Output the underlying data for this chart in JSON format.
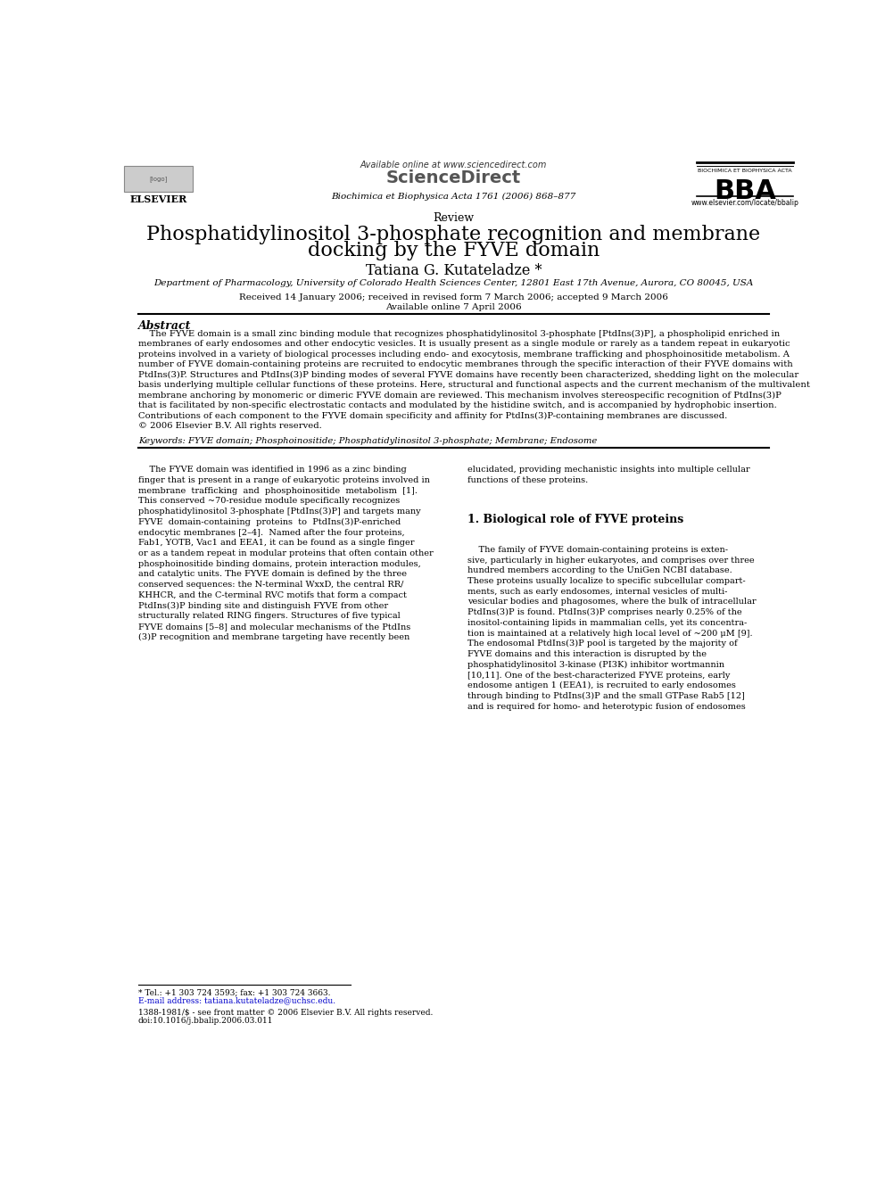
{
  "bg_color": "#ffffff",
  "page_width": 9.92,
  "page_height": 13.23,
  "header_available_online": "Available online at www.sciencedirect.com",
  "header_sciencedirect": "ScienceDirect",
  "header_journal": "Biochimica et Biophysica Acta 1761 (2006) 868–877",
  "header_bba_text": "BIOCHIMICA ET BIOPHYSICA ACTA",
  "header_bba_logo": "BBA",
  "header_elsevier": "ELSEVIER",
  "header_url": "www.elsevier.com/locate/bbalip",
  "article_type": "Review",
  "title_line1": "Phosphatidylinositol 3-phosphate recognition and membrane",
  "title_line2": "docking by the FYVE domain",
  "author": "Tatiana G. Kutateladze *",
  "affiliation": "Department of Pharmacology, University of Colorado Health Sciences Center, 12801 East 17th Avenue, Aurora, CO 80045, USA",
  "received": "Received 14 January 2006; received in revised form 7 March 2006; accepted 9 March 2006",
  "available_online": "Available online 7 April 2006",
  "abstract_title": "Abstract",
  "abstract_text": "    The FYVE domain is a small zinc binding module that recognizes phosphatidylinositol 3-phosphate [PtdIns(3)P], a phospholipid enriched in\nmembranes of early endosomes and other endocytic vesicles. It is usually present as a single module or rarely as a tandem repeat in eukaryotic\nproteins involved in a variety of biological processes including endo- and exocytosis, membrane trafficking and phosphoinositide metabolism. A\nnumber of FYVE domain-containing proteins are recruited to endocytic membranes through the specific interaction of their FYVE domains with\nPtdIns(3)P. Structures and PtdIns(3)P binding modes of several FYVE domains have recently been characterized, shedding light on the molecular\nbasis underlying multiple cellular functions of these proteins. Here, structural and functional aspects and the current mechanism of the multivalent\nmembrane anchoring by monomeric or dimeric FYVE domain are reviewed. This mechanism involves stereospecific recognition of PtdIns(3)P\nthat is facilitated by non-specific electrostatic contacts and modulated by the histidine switch, and is accompanied by hydrophobic insertion.\nContributions of each component to the FYVE domain specificity and affinity for PtdIns(3)P-containing membranes are discussed.\n© 2006 Elsevier B.V. All rights reserved.",
  "keywords": "Keywords: FYVE domain; Phosphoinositide; Phosphatidylinositol 3-phosphate; Membrane; Endosome",
  "body_col1_para1": "    The FYVE domain was identified in 1996 as a zinc binding\nfinger that is present in a range of eukaryotic proteins involved in\nmembrane  trafficking  and  phosphoinositide  metabolism  [1].\nThis conserved ~70-residue module specifically recognizes\nphosphatidylinositol 3-phosphate [PtdIns(3)P] and targets many\nFYVE  domain-containing  proteins  to  PtdIns(3)P-enriched\nendocytic membranes [2–4].  Named after the four proteins,\nFab1, YOTB, Vac1 and EEA1, it can be found as a single finger\nor as a tandem repeat in modular proteins that often contain other\nphosphoinositide binding domains, protein interaction modules,\nand catalytic units. The FYVE domain is defined by the three\nconserved sequences: the N-terminal WxxD, the central RR/\nKHHCR, and the C-terminal RVC motifs that form a compact\nPtdIns(3)P binding site and distinguish FYVE from other\nstructurally related RING fingers. Structures of five typical\nFYVE domains [5–8] and molecular mechanisms of the PtdIns\n(3)P recognition and membrane targeting have recently been",
  "body_col2_para1": "elucidated, providing mechanistic insights into multiple cellular\nfunctions of these proteins.",
  "body_col2_section": "1. Biological role of FYVE proteins",
  "body_col2_para2": "    The family of FYVE domain-containing proteins is exten-\nsive, particularly in higher eukaryotes, and comprises over three\nhundred members according to the UniGen NCBI database.\nThese proteins usually localize to specific subcellular compart-\nments, such as early endosomes, internal vesicles of multi-\nvesicular bodies and phagosomes, where the bulk of intracellular\nPtdIns(3)P is found. PtdIns(3)P comprises nearly 0.25% of the\ninositol-containing lipids in mammalian cells, yet its concentra-\ntion is maintained at a relatively high local level of ~200 μM [9].\nThe endosomal PtdIns(3)P pool is targeted by the majority of\nFYVE domains and this interaction is disrupted by the\nphosphatidylinositol 3-kinase (PI3K) inhibitor wortmannin\n[10,11]. One of the best-characterized FYVE proteins, early\nendosome antigen 1 (EEA1), is recruited to early endosomes\nthrough binding to PtdIns(3)P and the small GTPase Rab5 [12]\nand is required for homo- and heterotypic fusion of endosomes",
  "footnote_tel": "* Tel.: +1 303 724 3593; fax: +1 303 724 3663.",
  "footnote_email": "E-mail address: tatiana.kutateladze@uchsc.edu.",
  "footnote_issn": "1388-1981/$ - see front matter © 2006 Elsevier B.V. All rights reserved.",
  "footnote_doi": "doi:10.1016/j.bbalip.2006.03.011"
}
